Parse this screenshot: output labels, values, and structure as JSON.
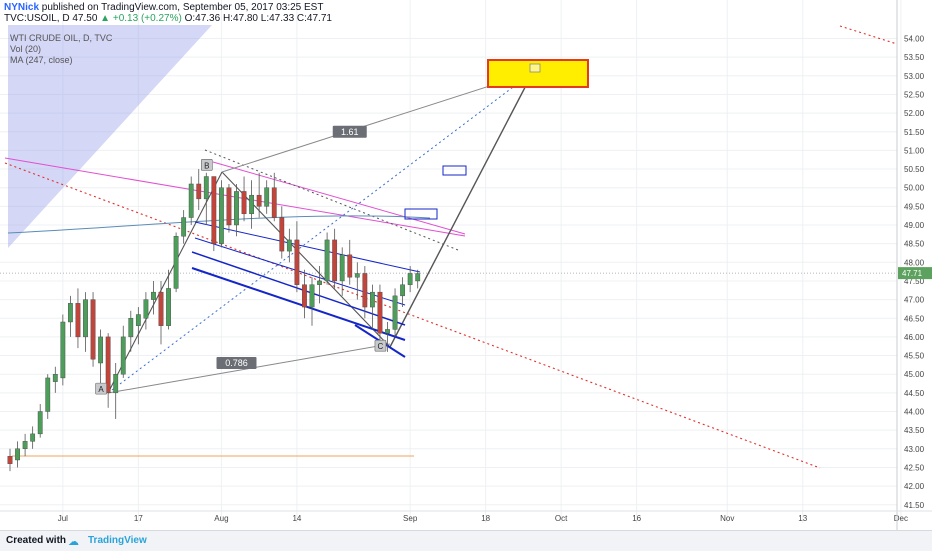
{
  "header": {
    "author": "NYNick",
    "published_text": "published on TradingView.com, September 05, 2017 03:25 EST",
    "symbol": "TVC:USOIL, D",
    "price": "47.50",
    "change": "+0.13 (+0.27%)",
    "open": "O:47.36",
    "high": "H:47.80",
    "low": "L:47.33",
    "close": "C:47.71"
  },
  "indicators": {
    "title": "WTI CRUDE OIL, D, TVC",
    "volume": "Vol (20)",
    "ma": "MA (247, close)"
  },
  "footer": {
    "created_with": "Created with",
    "brand": "TradingView"
  },
  "colors": {
    "up": "#4c9e5a",
    "down": "#c2453c",
    "grid": "#eef0f3",
    "channel": "#1426c8",
    "target_fill": "#ffee00",
    "target_border": "#e53a1f"
  },
  "chart_data": {
    "type": "candlestick",
    "y_range": [
      41.5,
      54.5
    ],
    "y_ticks": [
      "41.50",
      "42.00",
      "42.50",
      "43.00",
      "43.50",
      "44.00",
      "44.50",
      "45.00",
      "45.50",
      "46.00",
      "46.50",
      "47.00",
      "47.50",
      "48.00",
      "48.50",
      "49.00",
      "49.50",
      "50.00",
      "50.50",
      "51.00",
      "51.50",
      "52.00",
      "52.50",
      "53.00",
      "53.50",
      "54.00"
    ],
    "x_ticks": [
      {
        "label": "Jul",
        "index": 7
      },
      {
        "label": "17",
        "index": 17
      },
      {
        "label": "Aug",
        "index": 28
      },
      {
        "label": "14",
        "index": 38
      },
      {
        "label": "Sep",
        "index": 53
      },
      {
        "label": "18",
        "index": 63
      },
      {
        "label": "Oct",
        "index": 73
      },
      {
        "label": "16",
        "index": 83
      },
      {
        "label": "Nov",
        "index": 95
      },
      {
        "label": "13",
        "index": 105
      },
      {
        "label": "Dec",
        "index": 118
      }
    ],
    "last_price": "47.71",
    "candles": [
      [
        42.8,
        43.0,
        42.4,
        42.6
      ],
      [
        42.7,
        43.2,
        42.5,
        43.0
      ],
      [
        43.0,
        43.4,
        42.8,
        43.2
      ],
      [
        43.2,
        43.6,
        43.0,
        43.4
      ],
      [
        43.4,
        44.2,
        43.3,
        44.0
      ],
      [
        44.0,
        45.0,
        43.8,
        44.9
      ],
      [
        44.8,
        45.2,
        44.5,
        45.0
      ],
      [
        44.9,
        46.6,
        44.7,
        46.4
      ],
      [
        46.4,
        47.1,
        46.0,
        46.9
      ],
      [
        46.9,
        47.3,
        45.7,
        46.0
      ],
      [
        46.0,
        47.2,
        45.6,
        47.0
      ],
      [
        47.0,
        47.2,
        45.2,
        45.4
      ],
      [
        45.3,
        46.2,
        44.6,
        46.0
      ],
      [
        46.0,
        46.1,
        44.1,
        44.5
      ],
      [
        44.5,
        45.3,
        43.8,
        45.0
      ],
      [
        45.0,
        46.3,
        44.9,
        46.0
      ],
      [
        46.0,
        46.7,
        45.6,
        46.5
      ],
      [
        46.3,
        46.8,
        45.8,
        46.6
      ],
      [
        46.5,
        47.2,
        46.2,
        47.0
      ],
      [
        47.0,
        47.5,
        46.6,
        47.2
      ],
      [
        47.2,
        47.5,
        45.8,
        46.3
      ],
      [
        46.3,
        47.8,
        46.2,
        47.3
      ],
      [
        47.3,
        48.8,
        47.2,
        48.7
      ],
      [
        48.7,
        49.4,
        48.5,
        49.2
      ],
      [
        49.2,
        50.3,
        49.0,
        50.1
      ],
      [
        50.1,
        50.5,
        49.4,
        49.7
      ],
      [
        49.7,
        50.4,
        49.0,
        50.3
      ],
      [
        50.3,
        50.2,
        48.3,
        48.5
      ],
      [
        48.5,
        50.2,
        48.4,
        50.0
      ],
      [
        50.0,
        50.1,
        48.8,
        49.0
      ],
      [
        49.0,
        50.1,
        48.7,
        49.9
      ],
      [
        49.9,
        50.3,
        49.1,
        49.3
      ],
      [
        49.3,
        50.2,
        48.9,
        49.8
      ],
      [
        49.8,
        50.4,
        49.2,
        49.5
      ],
      [
        49.5,
        50.2,
        49.3,
        50.0
      ],
      [
        50.0,
        50.4,
        49.1,
        49.2
      ],
      [
        49.2,
        49.5,
        48.1,
        48.3
      ],
      [
        48.3,
        48.9,
        48.0,
        48.6
      ],
      [
        48.6,
        49.1,
        47.2,
        47.4
      ],
      [
        47.4,
        47.8,
        46.5,
        46.8
      ],
      [
        46.8,
        47.6,
        46.3,
        47.4
      ],
      [
        47.4,
        47.9,
        46.9,
        47.5
      ],
      [
        47.5,
        48.8,
        47.4,
        48.6
      ],
      [
        48.6,
        48.9,
        47.3,
        47.5
      ],
      [
        47.5,
        48.4,
        47.1,
        48.2
      ],
      [
        48.2,
        48.6,
        47.4,
        47.6
      ],
      [
        47.6,
        48.0,
        47.0,
        47.7
      ],
      [
        47.7,
        47.9,
        46.5,
        46.8
      ],
      [
        46.8,
        47.4,
        46.2,
        47.2
      ],
      [
        47.2,
        47.4,
        45.8,
        46.1
      ],
      [
        46.1,
        46.4,
        45.6,
        46.2
      ],
      [
        46.2,
        47.3,
        46.0,
        47.1
      ],
      [
        47.1,
        47.6,
        46.8,
        47.4
      ],
      [
        47.4,
        47.9,
        47.2,
        47.7
      ],
      [
        47.5,
        47.8,
        47.3,
        47.7
      ]
    ],
    "annotations": [
      {
        "label": "A",
        "index": 12,
        "price": 44.6
      },
      {
        "label": "B",
        "index": 26,
        "price": 50.6
      },
      {
        "label": "C",
        "index": 49,
        "price": 45.75
      }
    ],
    "fib_labels": [
      {
        "text": "1.61",
        "index": 45,
        "price": 51.5
      },
      {
        "text": "0.786",
        "index": 30,
        "price": 45.3
      }
    ]
  }
}
